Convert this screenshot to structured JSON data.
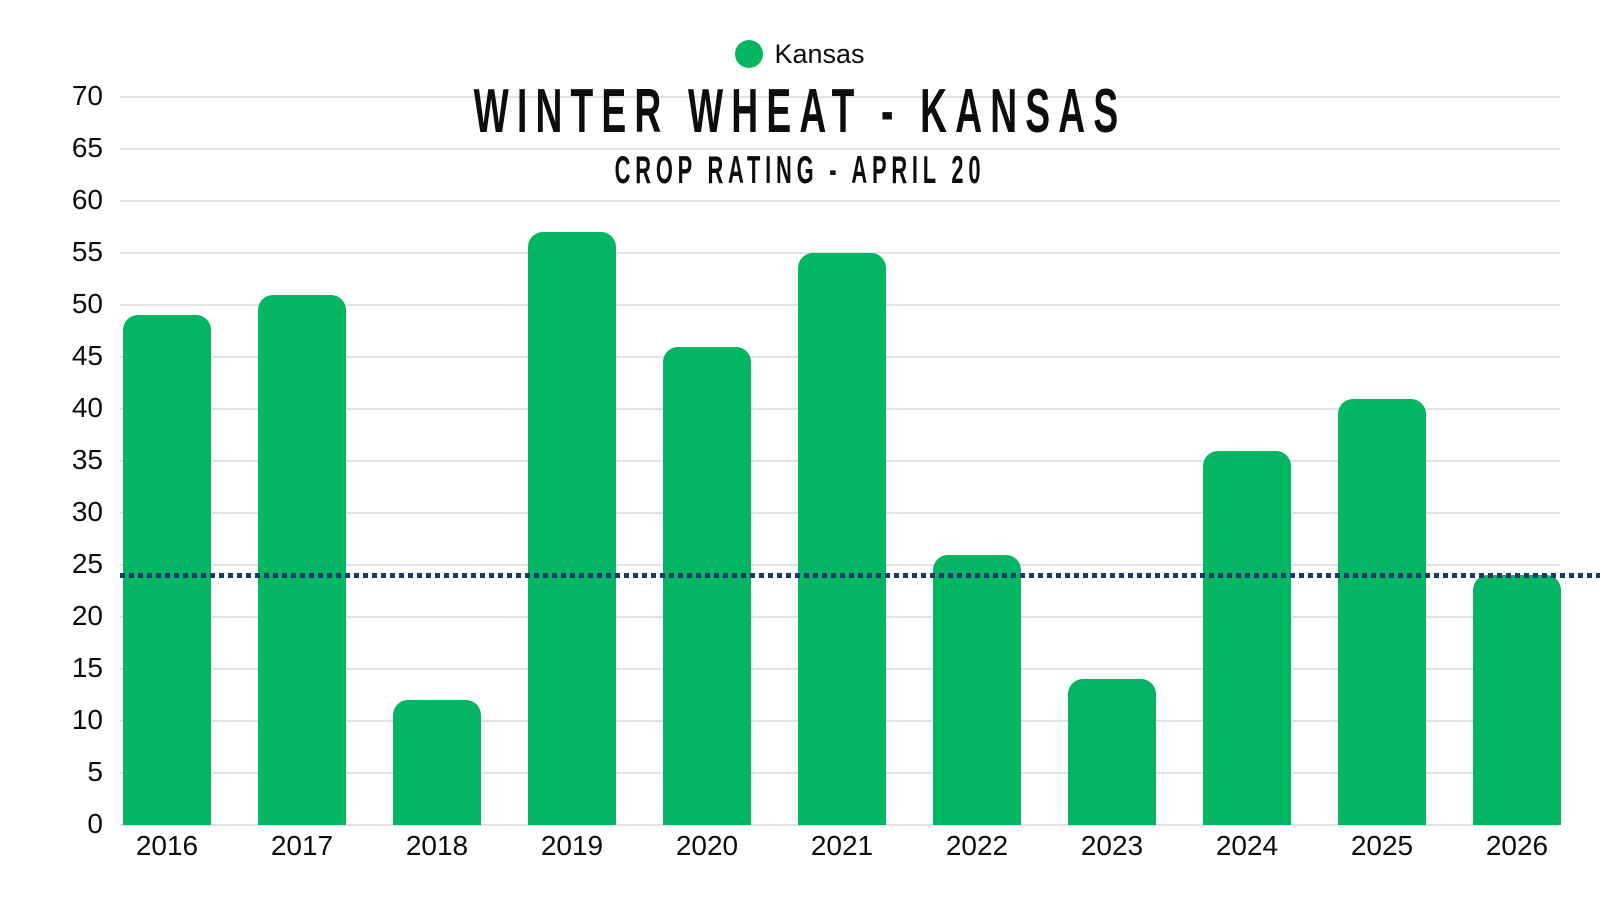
{
  "header": {
    "title": "WINTER WHEAT - KANSAS",
    "subtitle": "CROP RATING - APRIL 20"
  },
  "legend": {
    "position": "top-center",
    "items": [
      {
        "label": "Kansas",
        "marker": "circle-icon",
        "marker_color": "#04b563"
      }
    ]
  },
  "colors": {
    "bar": "#04b563",
    "reference_line": "#17396b",
    "gridline": "#e2e2e2",
    "axis_text": "#0d0d0d",
    "title_text": "#0d0d0d",
    "background": "#ffffff"
  },
  "chart_data": {
    "type": "bar",
    "title": "WINTER WHEAT - KANSAS",
    "subtitle": "CROP RATING - APRIL 20",
    "categories": [
      "2016",
      "2017",
      "2018",
      "2019",
      "2020",
      "2021",
      "2022",
      "2023",
      "2024",
      "2025",
      "2026"
    ],
    "series": [
      {
        "name": "Kansas",
        "values": [
          49,
          51,
          12,
          57,
          46,
          55,
          26,
          14,
          36,
          41,
          24
        ]
      }
    ],
    "xlabel": "",
    "ylabel": "",
    "ylim": [
      0,
      70
    ],
    "ytick_step": 5,
    "grid": "horizontal",
    "legend_position": "top-center",
    "reference_line": {
      "value": 24,
      "style": "dotted",
      "color": "#17396b"
    }
  }
}
